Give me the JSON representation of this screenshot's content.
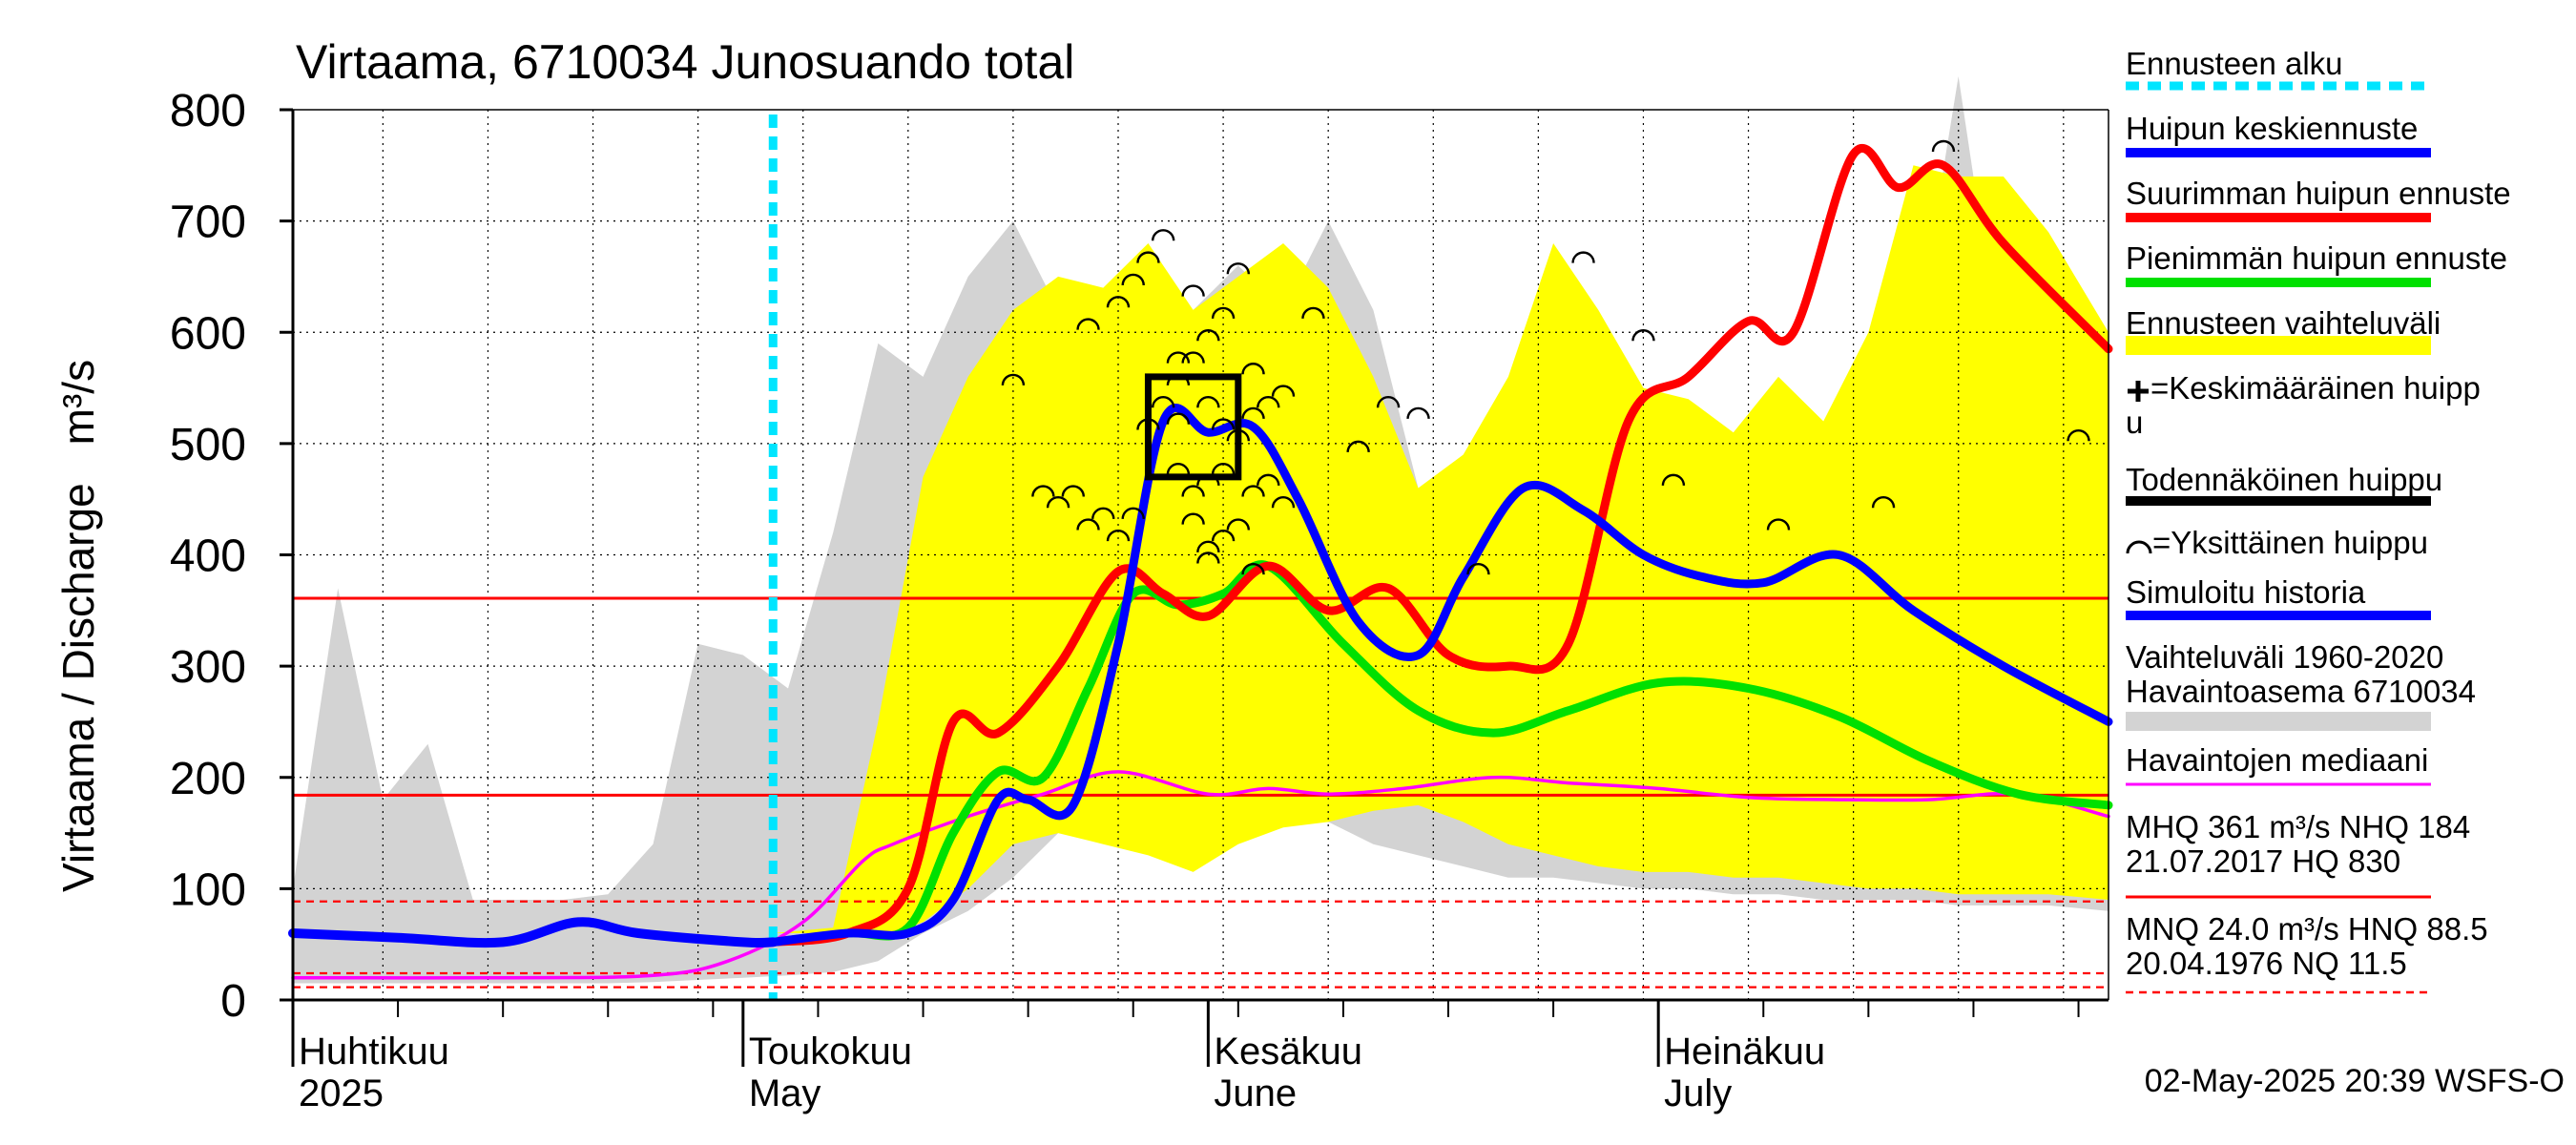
{
  "chart_data": {
    "type": "line",
    "title": "Virtaama, 6710034 Junosuando total",
    "ylabel": "Virtaama / Discharge",
    "yunit": "m³/s",
    "ylim": [
      0,
      800
    ],
    "yticks": [
      0,
      100,
      200,
      300,
      400,
      500,
      600,
      700,
      800
    ],
    "xlim": [
      "2025-04-01",
      "2025-07-31"
    ],
    "month_labels": [
      {
        "date": "2025-04-01",
        "fi": "Huhtikuu",
        "en": "2025"
      },
      {
        "date": "2025-05-01",
        "fi": "Toukokuu",
        "en": "May"
      },
      {
        "date": "2025-06-01",
        "fi": "Kesäkuu",
        "en": "June"
      },
      {
        "date": "2025-07-01",
        "fi": "Heinäkuu",
        "en": "July"
      }
    ],
    "grid": true,
    "legend_position": "right",
    "timestamp": "02-May-2025 20:39 WSFS-O",
    "colors": {
      "forecast_start": "#00e5ff",
      "mean_peak": "#0000ff",
      "max_peak": "#ff0000",
      "min_peak": "#00e000",
      "forecast_band": "#ffff00",
      "history_band": "#d3d3d3",
      "median": "#ff00ff",
      "mhq": "#ff0000",
      "mnq": "#ff0000"
    },
    "forecast_start": "2025-05-03",
    "reference_lines": [
      {
        "name": "MHQ",
        "value": 361,
        "style": "solid"
      },
      {
        "name": "NHQ",
        "value": 184,
        "style": "solid"
      },
      {
        "name": "HNQ",
        "value": 88.5,
        "style": "dashed"
      },
      {
        "name": "MNQ",
        "value": 24.0,
        "style": "dashed"
      },
      {
        "name": "NQ",
        "value": 11.5,
        "style": "dashed"
      }
    ],
    "history_band": {
      "x": [
        "2025-04-01",
        "2025-04-04",
        "2025-04-07",
        "2025-04-10",
        "2025-04-13",
        "2025-04-16",
        "2025-04-19",
        "2025-04-22",
        "2025-04-25",
        "2025-04-28",
        "2025-05-01",
        "2025-05-04",
        "2025-05-07",
        "2025-05-10",
        "2025-05-13",
        "2025-05-16",
        "2025-05-19",
        "2025-05-22",
        "2025-05-25",
        "2025-05-28",
        "2025-05-31",
        "2025-06-03",
        "2025-06-06",
        "2025-06-09",
        "2025-06-12",
        "2025-06-15",
        "2025-06-18",
        "2025-06-21",
        "2025-06-24",
        "2025-06-27",
        "2025-06-30",
        "2025-07-03",
        "2025-07-06",
        "2025-07-09",
        "2025-07-12",
        "2025-07-15",
        "2025-07-18",
        "2025-07-21",
        "2025-07-24",
        "2025-07-27",
        "2025-07-31"
      ],
      "upper": [
        100,
        370,
        180,
        230,
        90,
        90,
        90,
        95,
        140,
        320,
        310,
        280,
        420,
        590,
        560,
        650,
        700,
        620,
        560,
        560,
        620,
        660,
        620,
        700,
        620,
        460,
        430,
        450,
        480,
        460,
        520,
        540,
        470,
        460,
        490,
        520,
        580,
        830,
        560,
        520,
        150
      ],
      "lower": [
        15,
        15,
        15,
        15,
        15,
        15,
        15,
        15,
        16,
        18,
        20,
        22,
        25,
        35,
        60,
        80,
        110,
        150,
        230,
        230,
        220,
        190,
        170,
        160,
        140,
        130,
        120,
        110,
        110,
        105,
        100,
        100,
        95,
        95,
        90,
        90,
        90,
        85,
        85,
        85,
        80
      ]
    },
    "forecast_band": {
      "x": [
        "2025-05-03",
        "2025-05-07",
        "2025-05-10",
        "2025-05-13",
        "2025-05-16",
        "2025-05-19",
        "2025-05-22",
        "2025-05-25",
        "2025-05-28",
        "2025-05-31",
        "2025-06-03",
        "2025-06-06",
        "2025-06-09",
        "2025-06-12",
        "2025-06-15",
        "2025-06-18",
        "2025-06-21",
        "2025-06-24",
        "2025-06-27",
        "2025-06-30",
        "2025-07-03",
        "2025-07-06",
        "2025-07-09",
        "2025-07-12",
        "2025-07-15",
        "2025-07-18",
        "2025-07-21",
        "2025-07-24",
        "2025-07-27",
        "2025-07-31"
      ],
      "upper": [
        60,
        65,
        250,
        470,
        560,
        620,
        650,
        640,
        680,
        620,
        650,
        680,
        640,
        560,
        460,
        490,
        560,
        680,
        620,
        550,
        540,
        510,
        560,
        520,
        600,
        750,
        740,
        740,
        690,
        600
      ],
      "lower": [
        60,
        60,
        55,
        70,
        100,
        140,
        150,
        140,
        130,
        115,
        140,
        155,
        160,
        170,
        175,
        160,
        140,
        130,
        120,
        115,
        115,
        110,
        110,
        105,
        100,
        100,
        95,
        95,
        95,
        90
      ]
    },
    "series": [
      {
        "name": "Simuloitu historia",
        "x": [
          "2025-04-01",
          "2025-04-08",
          "2025-04-15",
          "2025-04-20",
          "2025-04-24",
          "2025-05-01",
          "2025-05-03"
        ],
        "values": [
          60,
          56,
          52,
          70,
          60,
          52,
          52
        ]
      },
      {
        "name": "Huipun keskiennuste",
        "x": [
          "2025-05-03",
          "2025-05-08",
          "2025-05-12",
          "2025-05-15",
          "2025-05-18",
          "2025-05-20",
          "2025-05-23",
          "2025-05-26",
          "2025-05-29",
          "2025-06-01",
          "2025-06-04",
          "2025-06-07",
          "2025-06-11",
          "2025-06-15",
          "2025-06-18",
          "2025-06-22",
          "2025-06-26",
          "2025-06-30",
          "2025-07-04",
          "2025-07-08",
          "2025-07-13",
          "2025-07-18",
          "2025-07-24",
          "2025-07-31"
        ],
        "values": [
          52,
          60,
          60,
          90,
          180,
          180,
          175,
          320,
          520,
          510,
          515,
          450,
          340,
          310,
          380,
          460,
          440,
          400,
          380,
          375,
          400,
          350,
          300,
          250
        ]
      },
      {
        "name": "Suurimman huipun ennuste",
        "x": [
          "2025-05-03",
          "2025-05-08",
          "2025-05-12",
          "2025-05-15",
          "2025-05-18",
          "2025-05-22",
          "2025-05-26",
          "2025-05-29",
          "2025-06-01",
          "2025-06-05",
          "2025-06-09",
          "2025-06-13",
          "2025-06-17",
          "2025-06-21",
          "2025-06-25",
          "2025-06-29",
          "2025-07-03",
          "2025-07-07",
          "2025-07-10",
          "2025-07-14",
          "2025-07-17",
          "2025-07-20",
          "2025-07-24",
          "2025-07-31"
        ],
        "values": [
          52,
          60,
          100,
          250,
          240,
          300,
          385,
          365,
          345,
          390,
          350,
          370,
          310,
          300,
          320,
          520,
          560,
          610,
          600,
          760,
          730,
          750,
          680,
          585
        ]
      },
      {
        "name": "Pienimmän huipun ennuste",
        "x": [
          "2025-05-03",
          "2025-05-08",
          "2025-05-12",
          "2025-05-15",
          "2025-05-18",
          "2025-05-21",
          "2025-05-24",
          "2025-05-27",
          "2025-05-30",
          "2025-06-02",
          "2025-06-05",
          "2025-06-10",
          "2025-06-15",
          "2025-06-20",
          "2025-06-25",
          "2025-07-01",
          "2025-07-07",
          "2025-07-13",
          "2025-07-19",
          "2025-07-25",
          "2025-07-31"
        ],
        "values": [
          52,
          60,
          65,
          150,
          205,
          200,
          280,
          365,
          355,
          365,
          390,
          320,
          260,
          240,
          260,
          285,
          280,
          255,
          215,
          185,
          175
        ]
      },
      {
        "name": "Havaintojen mediaani",
        "x": [
          "2025-04-01",
          "2025-04-15",
          "2025-04-25",
          "2025-04-30",
          "2025-05-05",
          "2025-05-09",
          "2025-05-11",
          "2025-05-16",
          "2025-05-21",
          "2025-05-26",
          "2025-06-01",
          "2025-06-05",
          "2025-06-09",
          "2025-06-14",
          "2025-06-20",
          "2025-06-25",
          "2025-07-01",
          "2025-07-07",
          "2025-07-13",
          "2025-07-19",
          "2025-07-25",
          "2025-07-31"
        ],
        "values": [
          20,
          20,
          22,
          35,
          70,
          125,
          140,
          165,
          185,
          205,
          185,
          190,
          185,
          190,
          200,
          195,
          190,
          182,
          180,
          180,
          185,
          165
        ]
      }
    ],
    "peaks": [
      [
        5,
        31,
        580
      ],
      [
        5,
        30,
        525
      ],
      [
        5,
        30,
        480
      ],
      [
        5,
        31,
        460
      ],
      [
        5,
        31,
        435
      ],
      [
        5,
        32,
        410
      ],
      [
        5,
        33,
        420
      ],
      [
        5,
        34,
        430
      ],
      [
        5,
        35,
        460
      ],
      [
        5,
        36,
        470
      ],
      [
        5,
        37,
        450
      ],
      [
        6,
        1,
        470
      ],
      [
        6,
        2,
        480
      ],
      [
        6,
        2,
        520
      ],
      [
        6,
        3,
        510
      ],
      [
        6,
        4,
        530
      ],
      [
        6,
        4,
        570
      ],
      [
        6,
        5,
        540
      ],
      [
        6,
        6,
        550
      ],
      [
        6,
        1,
        540
      ],
      [
        5,
        27,
        440
      ],
      [
        5,
        28,
        520
      ],
      [
        5,
        29,
        540
      ],
      [
        5,
        30,
        560
      ],
      [
        5,
        31,
        640
      ],
      [
        6,
        1,
        600
      ],
      [
        6,
        2,
        620
      ],
      [
        6,
        3,
        660
      ],
      [
        5,
        26,
        630
      ],
      [
        5,
        27,
        650
      ],
      [
        5,
        28,
        670
      ],
      [
        5,
        29,
        690
      ],
      [
        6,
        8,
        620
      ],
      [
        6,
        11,
        500
      ],
      [
        6,
        15,
        530
      ],
      [
        6,
        13,
        540
      ],
      [
        6,
        19,
        390
      ],
      [
        6,
        26,
        670
      ],
      [
        6,
        30,
        600
      ],
      [
        7,
        2,
        470
      ],
      [
        7,
        9,
        430
      ],
      [
        7,
        16,
        450
      ],
      [
        7,
        20,
        770
      ],
      [
        7,
        29,
        510
      ],
      [
        5,
        21,
        460
      ],
      [
        5,
        23,
        460
      ],
      [
        5,
        25,
        440
      ],
      [
        5,
        26,
        420
      ],
      [
        5,
        22,
        450
      ],
      [
        5,
        24,
        430
      ],
      [
        6,
        1,
        400
      ],
      [
        6,
        4,
        390
      ],
      [
        5,
        30,
        580
      ],
      [
        5,
        19,
        560
      ],
      [
        5,
        24,
        610
      ]
    ],
    "peak_box": {
      "x0": "2025-05-28",
      "x1": "2025-06-03",
      "y0": 470,
      "y1": 560
    },
    "legend": [
      {
        "label": "Ennusteen alku",
        "kind": "dashed",
        "color": "#00e5ff"
      },
      {
        "label": "Huipun keskiennuste",
        "kind": "line",
        "color": "#0000ff"
      },
      {
        "label": "Suurimman huipun ennuste",
        "kind": "line",
        "color": "#ff0000"
      },
      {
        "label": "Pienimmän huipun ennuste",
        "kind": "line",
        "color": "#00e000"
      },
      {
        "label": "Ennusteen vaihteluväli",
        "kind": "band",
        "color": "#ffff00"
      },
      {
        "label": "=Keskimääräinen huipp",
        "label2": "u",
        "kind": "plus",
        "color": "#000000"
      },
      {
        "label": "Todennäköinen huippu",
        "kind": "line",
        "color": "#000000"
      },
      {
        "label": "=Yksittäinen huippu",
        "kind": "arc",
        "color": "#000000"
      },
      {
        "label": "Simuloitu historia",
        "kind": "line",
        "color": "#0000ff"
      },
      {
        "label": "Vaihteluväli 1960-2020",
        "label2": " Havaintoasema 6710034",
        "kind": "band",
        "color": "#d3d3d3"
      },
      {
        "label": "Havaintojen mediaani",
        "kind": "thin",
        "color": "#ff00ff"
      },
      {
        "label": "MHQ  361 m³/s NHQ  184",
        "label2": "21.07.2017 HQ  830",
        "kind": "thin",
        "color": "#ff0000"
      },
      {
        "label": "MNQ 24.0 m³/s HNQ 88.5",
        "label2": "20.04.1976 NQ 11.5",
        "kind": "dashed-thin",
        "color": "#ff0000"
      }
    ]
  }
}
